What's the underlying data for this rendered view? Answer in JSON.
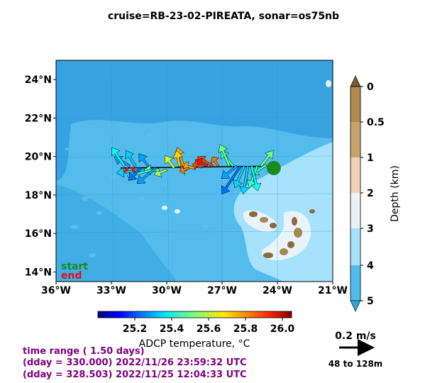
{
  "title": "cruise=RB-23-02-PIREATA,   sonar=os75nb",
  "map": {
    "x_ticks": [
      "36°W",
      "33°W",
      "30°W",
      "27°W",
      "24°W",
      "21°W"
    ],
    "y_ticks": [
      "24°N",
      "22°N",
      "20°N",
      "18°N",
      "16°N",
      "14°N"
    ],
    "start_label": "start",
    "end_label": "end",
    "colors": {
      "deep": "#36a3e0",
      "mid": "#54bcec",
      "shallow": "#a6e2fb",
      "coast": "#e8f4fa",
      "land": "#8b6a3c",
      "start": "#1a8a1a",
      "end": "#e01010"
    }
  },
  "depth_colorbar": {
    "label": "Depth (km)",
    "ticks": [
      "0",
      "0.5",
      "1",
      "2",
      "3",
      "4",
      "5"
    ],
    "colors": [
      "#b08a4e",
      "#c9a36e",
      "#efd2b8",
      "#eaf2f6",
      "#a6e2fb",
      "#54bcec",
      "#36a3e0"
    ]
  },
  "temp_colorbar": {
    "label": "ADCP temperature, °C",
    "ticks": [
      "25.2",
      "25.4",
      "25.6",
      "25.8",
      "26.0"
    ]
  },
  "scale": {
    "speed_label": "0.2 m/s",
    "depth_range": "48 to 128m"
  },
  "time_info": {
    "line1": "time range ( 1.50 days)",
    "line2": "(dday = 330.000) 2022/11/26 23:59:32 UTC",
    "line3": "(dday = 328.503) 2022/11/25 12:04:33 UTC",
    "color": "#800080"
  },
  "chart_data": {
    "type": "quiver-map",
    "title": "cruise=RB-23-02-PIREATA,   sonar=os75nb",
    "xlim": [
      -36,
      -21
    ],
    "ylim": [
      13.5,
      25
    ],
    "x_ticks": [
      -36,
      -33,
      -30,
      -27,
      -24,
      -21
    ],
    "y_ticks": [
      24,
      22,
      20,
      18,
      16,
      14
    ],
    "depth_ticks_km": [
      0,
      0.5,
      1,
      2,
      3,
      4,
      5
    ],
    "temp_range": [
      25.0,
      26.05
    ],
    "temp_ticks": [
      25.2,
      25.4,
      25.6,
      25.8,
      26.0
    ],
    "track": [
      [
        -24.2,
        19.5
      ],
      [
        -32.5,
        19.4
      ]
    ],
    "start": [
      -24.2,
      19.4
    ],
    "end": [
      -32.0,
      19.4
    ],
    "vectors": [
      {
        "lon": -24.6,
        "lat": 19.55,
        "u": -0.1,
        "v": -0.06,
        "t": 25.45
      },
      {
        "lon": -24.9,
        "lat": 19.5,
        "u": 0.08,
        "v": 0.1,
        "t": 25.5
      },
      {
        "lon": -25.1,
        "lat": 19.5,
        "u": -0.05,
        "v": -0.14,
        "t": 25.45
      },
      {
        "lon": -25.4,
        "lat": 19.5,
        "u": 0.04,
        "v": -0.16,
        "t": 25.4
      },
      {
        "lon": -25.6,
        "lat": 19.5,
        "u": -0.03,
        "v": -0.18,
        "t": 25.35
      },
      {
        "lon": -25.8,
        "lat": 19.5,
        "u": -0.06,
        "v": -0.14,
        "t": 25.35
      },
      {
        "lon": -26.0,
        "lat": 19.5,
        "u": -0.12,
        "v": -0.18,
        "t": 25.25
      },
      {
        "lon": -26.2,
        "lat": 19.5,
        "u": -0.1,
        "v": -0.08,
        "t": 25.3
      },
      {
        "lon": -26.4,
        "lat": 19.5,
        "u": -0.08,
        "v": 0.1,
        "t": 25.45
      },
      {
        "lon": -26.6,
        "lat": 19.5,
        "u": -0.06,
        "v": 0.14,
        "t": 25.5
      },
      {
        "lon": -27.2,
        "lat": 19.5,
        "u": -0.04,
        "v": 0.06,
        "t": 25.8
      },
      {
        "lon": -27.5,
        "lat": 19.5,
        "u": -0.1,
        "v": 0.06,
        "t": 25.85
      },
      {
        "lon": -27.8,
        "lat": 19.5,
        "u": -0.08,
        "v": 0.04,
        "t": 25.9
      },
      {
        "lon": -28.1,
        "lat": 19.45,
        "u": -0.06,
        "v": 0.02,
        "t": 25.85
      },
      {
        "lon": -28.5,
        "lat": 19.4,
        "u": -0.08,
        "v": 0.02,
        "t": 25.75
      },
      {
        "lon": -28.8,
        "lat": 19.4,
        "u": -0.06,
        "v": -0.02,
        "t": 25.8
      },
      {
        "lon": -29.1,
        "lat": 19.5,
        "u": -0.04,
        "v": 0.12,
        "t": 25.75
      },
      {
        "lon": -29.3,
        "lat": 19.5,
        "u": -0.02,
        "v": 0.1,
        "t": 25.7
      },
      {
        "lon": -29.6,
        "lat": 19.4,
        "u": -0.06,
        "v": 0.08,
        "t": 25.6
      },
      {
        "lon": -30.0,
        "lat": 19.3,
        "u": -0.08,
        "v": -0.03,
        "t": 25.55
      },
      {
        "lon": -30.4,
        "lat": 19.3,
        "u": -0.1,
        "v": 0.0,
        "t": 25.5
      },
      {
        "lon": -30.8,
        "lat": 19.3,
        "u": -0.16,
        "v": -0.04,
        "t": 25.45
      },
      {
        "lon": -31.2,
        "lat": 19.3,
        "u": -0.18,
        "v": -0.02,
        "t": 25.35
      },
      {
        "lon": -31.0,
        "lat": 19.5,
        "u": -0.06,
        "v": 0.08,
        "t": 25.3
      },
      {
        "lon": -31.4,
        "lat": 19.4,
        "u": -0.08,
        "v": -0.08,
        "t": 25.25
      },
      {
        "lon": -31.7,
        "lat": 19.5,
        "u": -0.06,
        "v": 0.1,
        "t": 25.35
      },
      {
        "lon": -32.0,
        "lat": 19.5,
        "u": -0.1,
        "v": 0.06,
        "t": 25.3
      },
      {
        "lon": -32.3,
        "lat": 19.5,
        "u": -0.08,
        "v": 0.12,
        "t": 25.4
      },
      {
        "lon": -30.6,
        "lat": 19.4,
        "u": -0.12,
        "v": -0.1,
        "t": 25.3
      }
    ]
  }
}
